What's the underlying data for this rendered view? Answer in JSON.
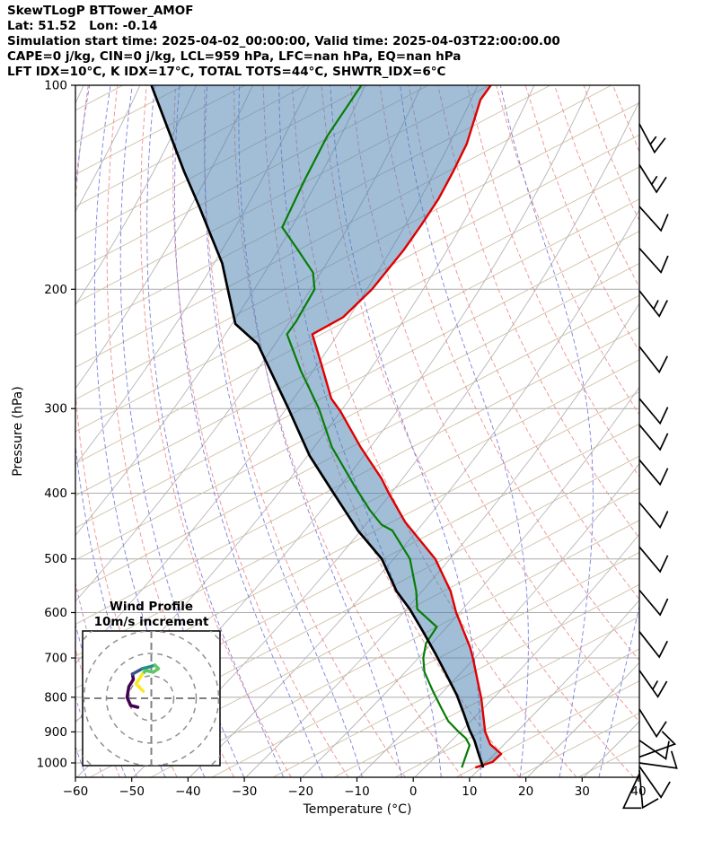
{
  "header": {
    "title": "SkewTLogP BTTower_AMOF",
    "lat_lon": "Lat: 51.52   Lon: -0.14",
    "times": "Simulation start time: 2025-04-02_00:00:00, Valid time: 2025-04-03T22:00:00.00",
    "indices_line1": "CAPE=0 j/kg, CIN=0 j/kg, LCL=959 hPa, LFC=nan hPa, EQ=nan hPa",
    "indices_line2": "LFT IDX=10°C, K IDX=17°C, TOTAL TOTS=44°C, SHWTR_IDX=6°C"
  },
  "chart_data": {
    "type": "line",
    "title": "SkewTLogP BTTower_AMOF",
    "xlabel": "Temperature (°C)",
    "ylabel": "Pressure (hPa)",
    "xlim": [
      -60,
      40
    ],
    "pressure_lim": [
      100,
      1050
    ],
    "x_ticks": [
      -60,
      -50,
      -40,
      -30,
      -20,
      -10,
      0,
      10,
      20,
      30,
      40
    ],
    "x_tick_labels": [
      "−60",
      "−50",
      "−40",
      "−30",
      "−20",
      "−10",
      "0",
      "10",
      "20",
      "30",
      "40"
    ],
    "p_ticks": [
      100,
      200,
      300,
      400,
      500,
      600,
      700,
      800,
      900,
      1000
    ],
    "p_tick_labels": [
      "100",
      "200",
      "300",
      "400",
      "500",
      "600",
      "700",
      "800",
      "900",
      "1000"
    ],
    "grid": true,
    "series": [
      {
        "name": "temperature",
        "color": "#e00000",
        "points": [
          [
            100,
            -40.4
          ],
          [
            105,
            -41.1
          ],
          [
            122,
            -40.0
          ],
          [
            134,
            -40.2
          ],
          [
            147,
            -40.6
          ],
          [
            161,
            -41.6
          ],
          [
            175,
            -42.7
          ],
          [
            200,
            -45.2
          ],
          [
            220,
            -48.1
          ],
          [
            233,
            -52.2
          ],
          [
            258,
            -48.2
          ],
          [
            290,
            -43.7
          ],
          [
            303,
            -41.0
          ],
          [
            342,
            -34.6
          ],
          [
            381,
            -28.3
          ],
          [
            400,
            -25.9
          ],
          [
            441,
            -20.7
          ],
          [
            500,
            -12.4
          ],
          [
            558,
            -7.1
          ],
          [
            600,
            -4.4
          ],
          [
            676,
            0.9
          ],
          [
            700,
            2.2
          ],
          [
            805,
            7.0
          ],
          [
            900,
            10.3
          ],
          [
            939,
            12.2
          ],
          [
            970,
            14.9
          ],
          [
            997,
            14.0
          ],
          [
            1016,
            11.4
          ]
        ]
      },
      {
        "name": "dewpoint",
        "color": "#067d06",
        "points": [
          [
            100,
            -63.4
          ],
          [
            119,
            -65.4
          ],
          [
            138,
            -65.9
          ],
          [
            162,
            -66.1
          ],
          [
            175,
            -61.5
          ],
          [
            189,
            -57.0
          ],
          [
            200,
            -55.4
          ],
          [
            223,
            -56.1
          ],
          [
            233,
            -56.7
          ],
          [
            264,
            -51.3
          ],
          [
            300,
            -45.1
          ],
          [
            342,
            -39.7
          ],
          [
            390,
            -32.6
          ],
          [
            423,
            -28.0
          ],
          [
            445,
            -24.7
          ],
          [
            454,
            -22.3
          ],
          [
            500,
            -16.9
          ],
          [
            558,
            -13.2
          ],
          [
            593,
            -11.6
          ],
          [
            630,
            -6.7
          ],
          [
            666,
            -7.3
          ],
          [
            700,
            -6.6
          ],
          [
            734,
            -5.3
          ],
          [
            781,
            -2.4
          ],
          [
            830,
            0.6
          ],
          [
            868,
            2.9
          ],
          [
            900,
            5.6
          ],
          [
            920,
            7.4
          ],
          [
            942,
            8.6
          ],
          [
            997,
            8.9
          ],
          [
            1016,
            9.0
          ]
        ]
      },
      {
        "name": "parcel",
        "color": "#000000",
        "points": [
          [
            100,
            -100.7
          ],
          [
            134,
            -88.0
          ],
          [
            151,
            -82.5
          ],
          [
            167,
            -78.0
          ],
          [
            183,
            -73.9
          ],
          [
            225,
            -66.7
          ],
          [
            241,
            -61.1
          ],
          [
            300,
            -50.5
          ],
          [
            352,
            -43.0
          ],
          [
            400,
            -35.7
          ],
          [
            454,
            -28.4
          ],
          [
            500,
            -21.9
          ],
          [
            558,
            -16.7
          ],
          [
            593,
            -12.9
          ],
          [
            642,
            -8.6
          ],
          [
            690,
            -4.8
          ],
          [
            748,
            -0.7
          ],
          [
            794,
            2.3
          ],
          [
            845,
            5.0
          ],
          [
            893,
            7.3
          ],
          [
            927,
            9.1
          ],
          [
            970,
            10.9
          ],
          [
            1016,
            12.8
          ]
        ]
      }
    ],
    "fill_between": {
      "from": "parcel",
      "to": "temperature",
      "color": "rgba(70,125,175,0.5)"
    },
    "background": {
      "grid_color": "#ababab",
      "isotherm_color": "#b5b5b5",
      "skew_line_color": "#cfc0a6",
      "dry_adiabat_color": "#ef8f8f",
      "moist_adiabat_color": "#7980e0",
      "extra_moist_color": "#b06fd0"
    },
    "wind_barbs": [
      {
        "p": 114,
        "angle": 62,
        "feathers": 1.5
      },
      {
        "p": 131,
        "angle": 58,
        "feathers": 1.5
      },
      {
        "p": 151,
        "angle": 48,
        "feathers": 1
      },
      {
        "p": 174,
        "angle": 48,
        "feathers": 1
      },
      {
        "p": 201,
        "angle": 52,
        "feathers": 1.5
      },
      {
        "p": 243,
        "angle": 52,
        "feathers": 1
      },
      {
        "p": 290,
        "angle": 50,
        "feathers": 1
      },
      {
        "p": 317,
        "angle": 50,
        "feathers": 1
      },
      {
        "p": 357,
        "angle": 50,
        "feathers": 1
      },
      {
        "p": 413,
        "angle": 50,
        "feathers": 1
      },
      {
        "p": 480,
        "angle": 50,
        "feathers": 1
      },
      {
        "p": 556,
        "angle": 50,
        "feathers": 1
      },
      {
        "p": 640,
        "angle": 52,
        "feathers": 1
      },
      {
        "p": 730,
        "angle": 55,
        "feathers": 1.5
      },
      {
        "p": 833,
        "angle": 58,
        "feathers": 1
      },
      {
        "p": 926,
        "angle": 35,
        "feathers": 1
      },
      {
        "p": 980,
        "angle": -20,
        "feathers": 1
      },
      {
        "p": 1000,
        "angle": 8,
        "feathers": 1
      },
      {
        "p": 1012,
        "angle": 55,
        "feathers": 1
      },
      {
        "p": 1025,
        "angle": 85,
        "feathers": 1
      },
      {
        "p": 1038,
        "angle": 115,
        "feathers": 1
      }
    ],
    "hodograph": {
      "title_line1": "Wind Profile",
      "title_line2": "10m/s increment",
      "ring_interval_ms": 10,
      "rings_ms": [
        10,
        20,
        30,
        40
      ],
      "trace_segments": [
        {
          "color": "#440154",
          "pts": [
            [
              -6,
              -4
            ],
            [
              -9.2,
              -3.2
            ],
            [
              -10.8,
              0.4
            ],
            [
              -10,
              5.2
            ],
            [
              -8,
              8.4
            ],
            [
              -8.4,
              10.8
            ]
          ]
        },
        {
          "color": "#3b528b",
          "pts": [
            [
              -8.4,
              10.8
            ],
            [
              -4,
              13.2
            ]
          ]
        },
        {
          "color": "#21918c",
          "pts": [
            [
              -4,
              13.2
            ],
            [
              -0.8,
              14
            ],
            [
              1.6,
              14.8
            ]
          ]
        },
        {
          "color": "#5ec962",
          "pts": [
            [
              1.6,
              14.8
            ],
            [
              3.2,
              13.2
            ],
            [
              0.8,
              11.6
            ],
            [
              -2.4,
              12.4
            ],
            [
              -4,
              10.8
            ]
          ]
        },
        {
          "color": "#fde725",
          "pts": [
            [
              -4,
              10.8
            ],
            [
              -6.8,
              6.4
            ],
            [
              -3.6,
              3.2
            ]
          ]
        }
      ]
    }
  }
}
